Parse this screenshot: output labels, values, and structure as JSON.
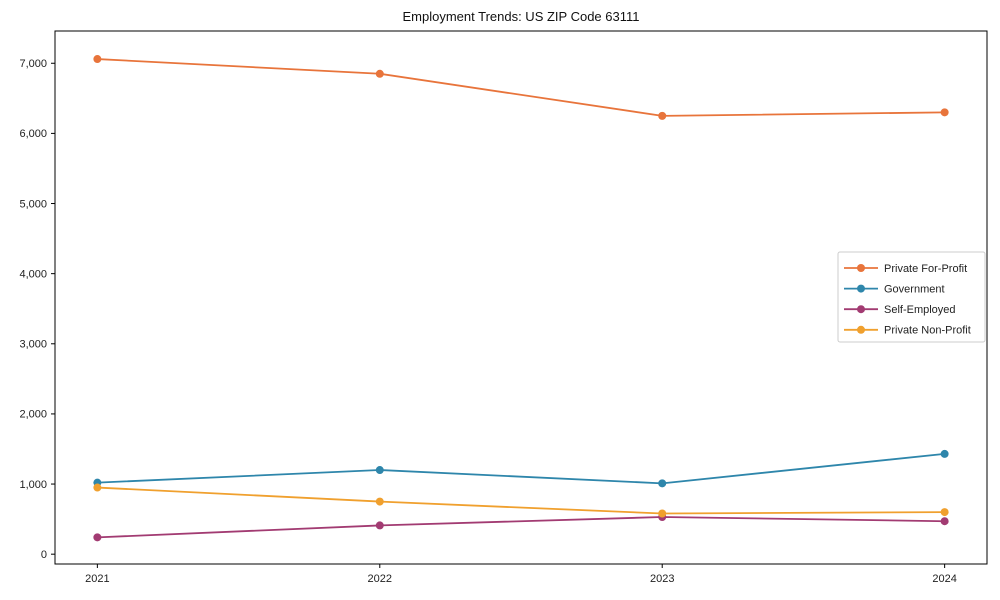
{
  "figure": {
    "title": "Employment Trends: US ZIP Code 63111"
  },
  "chart_data": {
    "type": "line",
    "title": "Employment Trends: US ZIP Code 63111",
    "xlabel": "",
    "ylabel": "",
    "grid": false,
    "legend_position": "center-right",
    "legend_border_color": "#cccccc",
    "axis_color": "#000000",
    "background_color": "#ffffff",
    "x": [
      2021,
      2022,
      2023,
      2024
    ],
    "x_tick_labels": [
      "2021",
      "2022",
      "2023",
      "2024"
    ],
    "xlim": [
      2020.85,
      2024.15
    ],
    "y_ticks": [
      0,
      1000,
      2000,
      3000,
      4000,
      5000,
      6000,
      7000
    ],
    "y_tick_labels": [
      "0",
      "1,000",
      "2,000",
      "3,000",
      "4,000",
      "5,000",
      "6,000",
      "7,000"
    ],
    "ylim": [
      -140,
      7460
    ],
    "series": [
      {
        "name": "Private For-Profit",
        "color": "#e8743b",
        "values": [
          7060,
          6850,
          6250,
          6300
        ]
      },
      {
        "name": "Government",
        "color": "#2e86ab",
        "values": [
          1020,
          1200,
          1010,
          1430
        ]
      },
      {
        "name": "Self-Employed",
        "color": "#a23b72",
        "values": [
          240,
          410,
          530,
          470
        ]
      },
      {
        "name": "Private Non-Profit",
        "color": "#f0a02e",
        "values": [
          950,
          750,
          580,
          600
        ]
      }
    ]
  }
}
